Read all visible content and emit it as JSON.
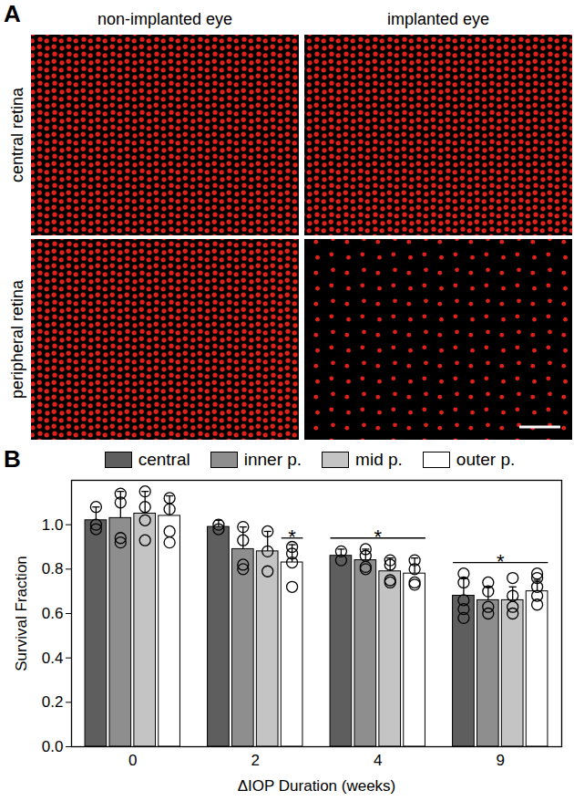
{
  "panel_a": {
    "label": "A",
    "columns": [
      "non-implanted eye",
      "implanted eye"
    ],
    "rows": [
      "central retina",
      "peripheral retina"
    ]
  },
  "chart_data": {
    "type": "bar",
    "panel_label": "B",
    "x_label": "ΔIOP Duration (weeks)",
    "y_label": "Survival Fraction",
    "categories": [
      "0",
      "2",
      "4",
      "9"
    ],
    "series": [
      {
        "name": "central",
        "color": "#5e5e5e",
        "values": [
          1.02,
          0.99,
          0.86,
          0.68
        ],
        "error": [
          0.06,
          0.03,
          0.03,
          0.08
        ],
        "points": [
          [
            1.08,
            1.0,
            0.98
          ],
          [
            1.0,
            0.98
          ],
          [
            0.88,
            0.84
          ],
          [
            0.78,
            0.74,
            0.66,
            0.62,
            0.58
          ]
        ]
      },
      {
        "name": "inner p.",
        "color": "#8e8e8e",
        "values": [
          1.03,
          0.89,
          0.84,
          0.66
        ],
        "error": [
          0.12,
          0.1,
          0.05,
          0.06
        ],
        "points": [
          [
            1.14,
            1.1,
            0.94,
            0.92
          ],
          [
            0.99,
            0.93,
            0.82,
            0.8
          ],
          [
            0.89,
            0.86,
            0.81,
            0.8
          ],
          [
            0.74,
            0.7,
            0.63,
            0.6
          ]
        ]
      },
      {
        "name": "mid p.",
        "color": "#c4c4c4",
        "values": [
          1.05,
          0.88,
          0.79,
          0.66
        ],
        "error": [
          0.1,
          0.09,
          0.06,
          0.06
        ],
        "points": [
          [
            1.15,
            1.08,
            1.02,
            0.93
          ],
          [
            0.97,
            0.88,
            0.79
          ],
          [
            0.84,
            0.82,
            0.75,
            0.74
          ],
          [
            0.76,
            0.68,
            0.63,
            0.6
          ]
        ]
      },
      {
        "name": "outer p.",
        "color": "#ffffff",
        "values": [
          1.04,
          0.83,
          0.78,
          0.7
        ],
        "error": [
          0.09,
          0.08,
          0.07,
          0.05
        ],
        "points": [
          [
            1.12,
            1.07,
            0.97,
            0.92
          ],
          [
            0.9,
            0.87,
            0.83,
            0.72
          ],
          [
            0.84,
            0.8,
            0.74,
            0.73
          ],
          [
            0.78,
            0.76,
            0.72,
            0.68,
            0.64
          ]
        ]
      }
    ],
    "ylim": [
      0,
      1.2
    ],
    "yticks": [
      {
        "value": 0,
        "label": "0.0"
      },
      {
        "value": 0.2,
        "label": "0.2"
      },
      {
        "value": 0.4,
        "label": "0.4"
      },
      {
        "value": 0.6,
        "label": "0.6"
      },
      {
        "value": 0.8,
        "label": "0.8"
      },
      {
        "value": 1,
        "label": "1.0"
      }
    ],
    "legend": "top",
    "annotations": [
      {
        "text": "*",
        "category": "2",
        "from": "outer p.",
        "to": "outer p.",
        "y": 0.94
      },
      {
        "text": "*",
        "category": "4",
        "from": "central",
        "to": "outer p.",
        "y": 0.94
      },
      {
        "text": "*",
        "category": "9",
        "from": "central",
        "to": "outer p.",
        "y": 0.83
      }
    ]
  }
}
